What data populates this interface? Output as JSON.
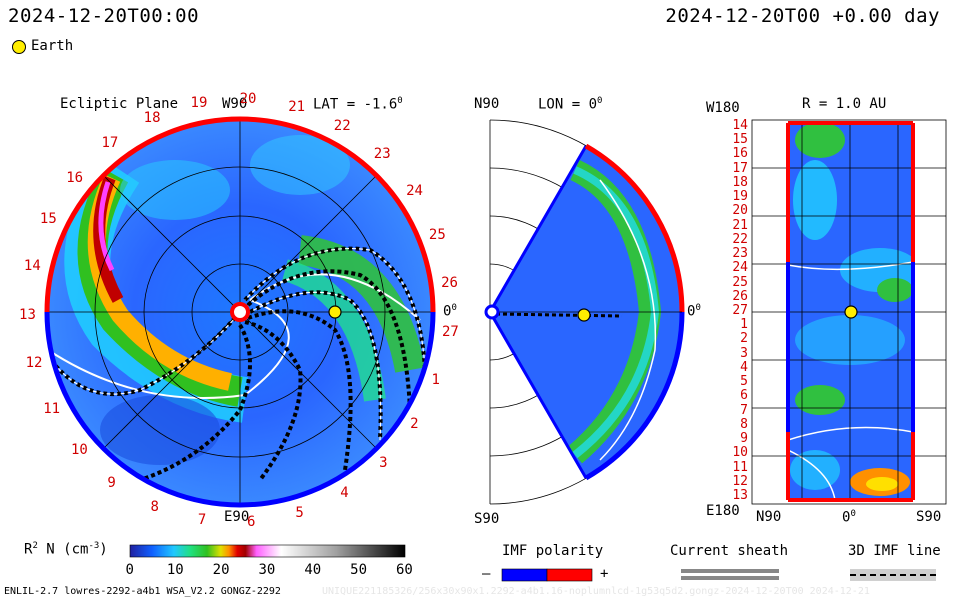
{
  "header": {
    "left_datetime": "2024-12-20T00:00",
    "right_datetime": "2024-12-20T00 +0.00 day"
  },
  "legend": {
    "earth_label": "Earth",
    "earth_color": "#ffee00"
  },
  "ecliptic": {
    "title": "Ecliptic Plane",
    "lat_label": "LAT = -1.6",
    "lat_unit": "0",
    "top_label": "W90",
    "bottom_label": "E90",
    "right_label": "0",
    "right_unit": "0",
    "carrington_ticks": [
      "19",
      "20",
      "21",
      "22",
      "23",
      "24",
      "25",
      "26",
      "27",
      "1",
      "2",
      "3",
      "4",
      "5",
      "6",
      "7",
      "8",
      "9",
      "10",
      "11",
      "12",
      "13",
      "14",
      "15",
      "16",
      "17",
      "18"
    ]
  },
  "meridional": {
    "title": "LON = 0",
    "title_unit": "0",
    "top_label": "N90",
    "bottom_label": "S90",
    "right_label": "0",
    "right_unit": "0"
  },
  "radial": {
    "title": "R = 1.0 AU",
    "top_left_label": "W180",
    "bottom_left_label": "E180",
    "x_labels": [
      "N90",
      "0",
      "S90"
    ],
    "x_unit": "0",
    "y_labels": [
      "14",
      "15",
      "16",
      "17",
      "18",
      "19",
      "20",
      "21",
      "22",
      "23",
      "24",
      "25",
      "26",
      "27",
      "1",
      "2",
      "3",
      "4",
      "5",
      "6",
      "7",
      "8",
      "9",
      "10",
      "11",
      "12",
      "13"
    ]
  },
  "colorbar": {
    "label_prefix": "R",
    "label_exp": "2",
    "label_main": " N (cm",
    "label_unit_exp": "-3",
    "label_close": ")",
    "ticks": [
      "0",
      "10",
      "20",
      "30",
      "40",
      "50",
      "60"
    ]
  },
  "imf_polarity": {
    "title": "IMF polarity",
    "minus": "–",
    "plus": "+",
    "neg_color": "#0000ff",
    "pos_color": "#ff0000"
  },
  "current_sheath": {
    "title": "Current sheath"
  },
  "imf_line": {
    "title": "3D IMF line"
  },
  "footer": {
    "left": "ENLIL-2.7 lowres-2292-a4b1 WSA_V2.2 GONGZ-2292",
    "right": "UNIQUE221185326/256x30x90x1.2292-a4b1.16-noplumnlcd-1g53q5d2.gongz-2024-12-20T00   2024-12-21"
  }
}
